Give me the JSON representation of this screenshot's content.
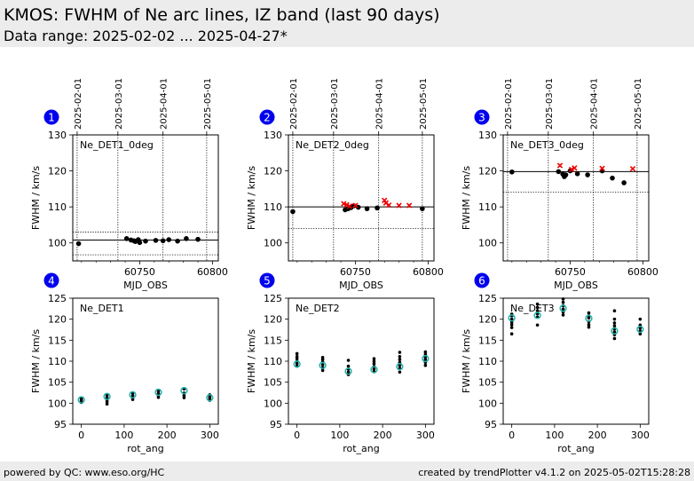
{
  "header": {
    "title": "KMOS: FWHM of Ne arc lines, IZ band (last 90 days)",
    "subtitle": "Data range: 2025-02-02 ... 2025-04-27*"
  },
  "footer": {
    "left": "powered by QC: www.eso.org/HC",
    "right": "created by trendPlotter v4.1.2 on 2025-05-02T15:28:28"
  },
  "colors": {
    "badge": "#0000ee",
    "trend_points": "#000000",
    "outlier": "#ee0000",
    "mean_marker": "#20b2aa"
  },
  "chart_data": [
    {
      "id": "1",
      "type": "scatter",
      "panel_label": "Ne_DET1_0deg",
      "xlabel": "MJD_OBS",
      "ylabel": "FWHM / km/s",
      "xlim": [
        60704,
        60804
      ],
      "ylim": [
        95,
        130
      ],
      "yticks": [
        100,
        110,
        120,
        130
      ],
      "xticks": [
        60750,
        60800
      ],
      "date_ticks": [
        {
          "label": "2025-02-01",
          "x": 60707
        },
        {
          "label": "2025-03-01",
          "x": 60735
        },
        {
          "label": "2025-04-01",
          "x": 60766
        },
        {
          "label": "2025-05-01",
          "x": 60796
        }
      ],
      "ref_line": 100.8,
      "threshold_lines": [
        96.7,
        103.0
      ],
      "points": [
        [
          60708,
          99.8
        ],
        [
          60741,
          101.2
        ],
        [
          60744,
          100.8
        ],
        [
          60746,
          100.6
        ],
        [
          60747,
          100.4
        ],
        [
          60749,
          100.9
        ],
        [
          60750,
          100.1
        ],
        [
          60754,
          100.5
        ],
        [
          60761,
          100.7
        ],
        [
          60766,
          100.6
        ],
        [
          60770,
          100.9
        ],
        [
          60776,
          100.5
        ],
        [
          60782,
          101.2
        ],
        [
          60790,
          101.0
        ]
      ],
      "outliers": []
    },
    {
      "id": "2",
      "type": "scatter",
      "panel_label": "Ne_DET2_0deg",
      "xlabel": "MJD_OBS",
      "ylabel": "FWHM / km/s",
      "xlim": [
        60704,
        60804
      ],
      "ylim": [
        95,
        130
      ],
      "yticks": [
        100,
        110,
        120,
        130
      ],
      "xticks": [
        60750,
        60800
      ],
      "date_ticks": [
        {
          "label": "2025-02-01",
          "x": 60707
        },
        {
          "label": "2025-03-01",
          "x": 60735
        },
        {
          "label": "2025-04-01",
          "x": 60766
        },
        {
          "label": "2025-05-01",
          "x": 60796
        }
      ],
      "ref_line": 110.0,
      "threshold_lines": [
        104.0
      ],
      "points": [
        [
          60707,
          108.7
        ],
        [
          60743,
          109.2
        ],
        [
          60745,
          109.5
        ],
        [
          60747,
          109.8
        ],
        [
          60749,
          110.3
        ],
        [
          60752,
          109.9
        ],
        [
          60758,
          109.5
        ],
        [
          60765,
          109.7
        ],
        [
          60796,
          109.5
        ]
      ],
      "outliers": [
        [
          60742,
          110.9
        ],
        [
          60744,
          110.6
        ],
        [
          60746,
          110.2
        ],
        [
          60750,
          110.4
        ],
        [
          60770,
          111.8
        ],
        [
          60771,
          111.1
        ],
        [
          60773,
          110.5
        ],
        [
          60780,
          110.4
        ],
        [
          60787,
          110.4
        ]
      ]
    },
    {
      "id": "3",
      "type": "scatter",
      "panel_label": "Ne_DET3_0deg",
      "xlabel": "MJD_OBS",
      "ylabel": "FWHM / km/s",
      "xlim": [
        60704,
        60804
      ],
      "ylim": [
        95,
        130
      ],
      "yticks": [
        100,
        110,
        120,
        130
      ],
      "xticks": [
        60750,
        60800
      ],
      "date_ticks": [
        {
          "label": "2025-02-01",
          "x": 60707
        },
        {
          "label": "2025-03-01",
          "x": 60735
        },
        {
          "label": "2025-04-01",
          "x": 60766
        },
        {
          "label": "2025-05-01",
          "x": 60796
        }
      ],
      "ref_line": 119.8,
      "threshold_lines": [
        114.1
      ],
      "points": [
        [
          60710,
          119.7
        ],
        [
          60742,
          119.8
        ],
        [
          60745,
          119.1
        ],
        [
          60746,
          118.4
        ],
        [
          60747,
          118.9
        ],
        [
          60750,
          120.0
        ],
        [
          60755,
          119.2
        ],
        [
          60762,
          118.9
        ],
        [
          60772,
          120.0
        ],
        [
          60779,
          118.0
        ],
        [
          60787,
          116.7
        ]
      ],
      "outliers": [
        [
          60743,
          121.5
        ],
        [
          60751,
          120.4
        ],
        [
          60753,
          120.8
        ],
        [
          60772,
          120.7
        ],
        [
          60793,
          120.6
        ]
      ]
    },
    {
      "id": "4",
      "type": "scatter",
      "panel_label": "Ne_DET1",
      "xlabel": "rot_ang",
      "ylabel": "FWHM / km/s",
      "xlim": [
        -20,
        320
      ],
      "ylim": [
        95,
        125
      ],
      "yticks": [
        95,
        100,
        105,
        110,
        115,
        120,
        125
      ],
      "xticks": [
        0,
        100,
        200,
        300
      ],
      "points": [
        [
          0,
          100.2
        ],
        [
          0,
          100.6
        ],
        [
          0,
          100.9
        ],
        [
          0,
          101.2
        ],
        [
          60,
          99.8
        ],
        [
          60,
          100.3
        ],
        [
          60,
          100.7
        ],
        [
          60,
          101.0
        ],
        [
          60,
          101.4
        ],
        [
          60,
          101.9
        ],
        [
          120,
          100.9
        ],
        [
          120,
          101.3
        ],
        [
          120,
          101.8
        ],
        [
          120,
          102.4
        ],
        [
          180,
          101.4
        ],
        [
          180,
          101.9
        ],
        [
          180,
          102.3
        ],
        [
          180,
          102.9
        ],
        [
          240,
          101.3
        ],
        [
          240,
          101.8
        ],
        [
          240,
          102.4
        ],
        [
          240,
          103.4
        ],
        [
          300,
          100.7
        ],
        [
          300,
          101.1
        ],
        [
          300,
          101.5
        ],
        [
          300,
          102.0
        ]
      ],
      "means": [
        [
          0,
          100.8
        ],
        [
          60,
          101.6
        ],
        [
          120,
          102.0
        ],
        [
          180,
          102.6
        ],
        [
          240,
          103.0
        ],
        [
          300,
          101.3
        ]
      ]
    },
    {
      "id": "5",
      "type": "scatter",
      "panel_label": "Ne_DET2",
      "xlabel": "rot_ang",
      "ylabel": "FWHM / km/s",
      "xlim": [
        -20,
        320
      ],
      "ylim": [
        95,
        125
      ],
      "yticks": [
        95,
        100,
        105,
        110,
        115,
        120,
        125
      ],
      "xticks": [
        0,
        100,
        200,
        300
      ],
      "points": [
        [
          0,
          108.8
        ],
        [
          0,
          109.4
        ],
        [
          0,
          110.0
        ],
        [
          0,
          110.6
        ],
        [
          0,
          111.1
        ],
        [
          0,
          111.8
        ],
        [
          60,
          107.8
        ],
        [
          60,
          108.4
        ],
        [
          60,
          109.1
        ],
        [
          60,
          109.8
        ],
        [
          60,
          110.4
        ],
        [
          60,
          110.9
        ],
        [
          120,
          106.8
        ],
        [
          120,
          107.4
        ],
        [
          120,
          108.1
        ],
        [
          120,
          108.8
        ],
        [
          120,
          110.2
        ],
        [
          180,
          107.5
        ],
        [
          180,
          108.1
        ],
        [
          180,
          108.7
        ],
        [
          180,
          109.4
        ],
        [
          180,
          110.0
        ],
        [
          180,
          110.6
        ],
        [
          240,
          107.4
        ],
        [
          240,
          108.3
        ],
        [
          240,
          109.0
        ],
        [
          240,
          109.7
        ],
        [
          240,
          110.4
        ],
        [
          240,
          111.1
        ],
        [
          240,
          112.1
        ],
        [
          300,
          109.0
        ],
        [
          300,
          109.7
        ],
        [
          300,
          110.4
        ],
        [
          300,
          111.0
        ],
        [
          300,
          111.6
        ],
        [
          300,
          112.2
        ]
      ],
      "means": [
        [
          0,
          109.3
        ],
        [
          60,
          109.0
        ],
        [
          120,
          107.6
        ],
        [
          180,
          108.0
        ],
        [
          240,
          108.7
        ],
        [
          300,
          110.6
        ]
      ]
    },
    {
      "id": "6",
      "type": "scatter",
      "panel_label": "Ne_DET3",
      "xlabel": "rot_ang",
      "ylabel": "FWHM / km/s",
      "xlim": [
        -20,
        320
      ],
      "ylim": [
        95,
        125
      ],
      "yticks": [
        95,
        100,
        105,
        110,
        115,
        120,
        125
      ],
      "xticks": [
        0,
        100,
        200,
        300
      ],
      "points": [
        [
          0,
          116.5
        ],
        [
          0,
          118.0
        ],
        [
          0,
          118.7
        ],
        [
          0,
          119.3
        ],
        [
          0,
          120.0
        ],
        [
          0,
          120.8
        ],
        [
          0,
          121.2
        ],
        [
          60,
          118.6
        ],
        [
          60,
          120.5
        ],
        [
          60,
          121.3
        ],
        [
          60,
          122.0
        ],
        [
          60,
          122.8
        ],
        [
          60,
          123.6
        ],
        [
          120,
          121.0
        ],
        [
          120,
          121.7
        ],
        [
          120,
          122.4
        ],
        [
          120,
          123.2
        ],
        [
          120,
          124.0
        ],
        [
          120,
          124.8
        ],
        [
          180,
          118.1
        ],
        [
          180,
          118.7
        ],
        [
          180,
          119.4
        ],
        [
          180,
          120.3
        ],
        [
          180,
          120.8
        ],
        [
          180,
          121.5
        ],
        [
          240,
          115.4
        ],
        [
          240,
          116.3
        ],
        [
          240,
          117.0
        ],
        [
          240,
          117.7
        ],
        [
          240,
          118.4
        ],
        [
          240,
          119.1
        ],
        [
          240,
          120.0
        ],
        [
          240,
          122.0
        ],
        [
          300,
          116.5
        ],
        [
          300,
          117.2
        ],
        [
          300,
          117.9
        ],
        [
          300,
          118.6
        ],
        [
          300,
          120.0
        ]
      ],
      "means": [
        [
          0,
          120.3
        ],
        [
          60,
          120.9
        ],
        [
          120,
          122.6
        ],
        [
          180,
          120.2
        ],
        [
          240,
          117.2
        ],
        [
          300,
          117.6
        ]
      ]
    }
  ]
}
